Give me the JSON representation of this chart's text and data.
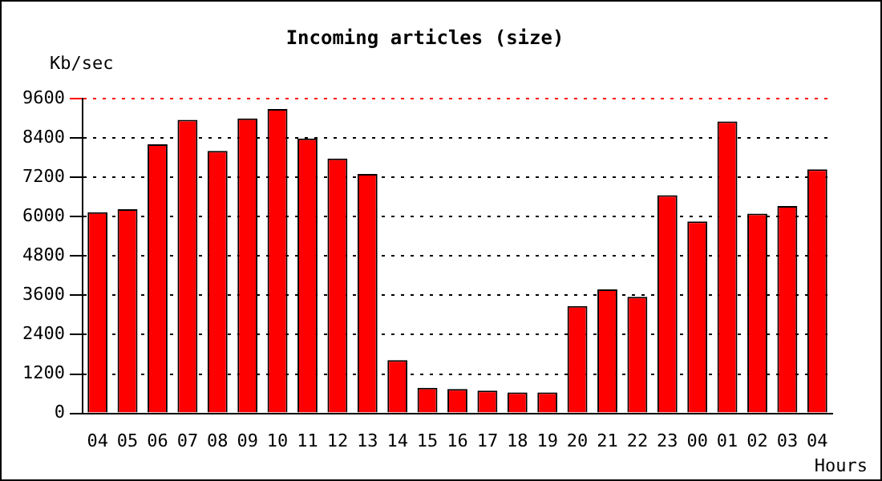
{
  "chart_data": {
    "type": "bar",
    "title": "Incoming articles (size)",
    "ylabel": "Kb/sec",
    "xlabel": "Hours",
    "categories": [
      "04",
      "05",
      "06",
      "07",
      "08",
      "09",
      "10",
      "11",
      "12",
      "13",
      "14",
      "15",
      "16",
      "17",
      "18",
      "19",
      "20",
      "21",
      "22",
      "23",
      "00",
      "01",
      "02",
      "03",
      "04"
    ],
    "values": [
      6130,
      6220,
      8200,
      8950,
      8000,
      8990,
      9280,
      8380,
      7770,
      7300,
      1620,
      780,
      740,
      690,
      640,
      640,
      3270,
      3780,
      3550,
      6650,
      5850,
      8900,
      6090,
      6320,
      7440
    ],
    "color": "#ff0000",
    "ylim": [
      0,
      9600
    ],
    "yticks": [
      0,
      1200,
      2400,
      3600,
      4800,
      6000,
      7200,
      8400,
      9600
    ],
    "grid": "y",
    "legend": false
  }
}
